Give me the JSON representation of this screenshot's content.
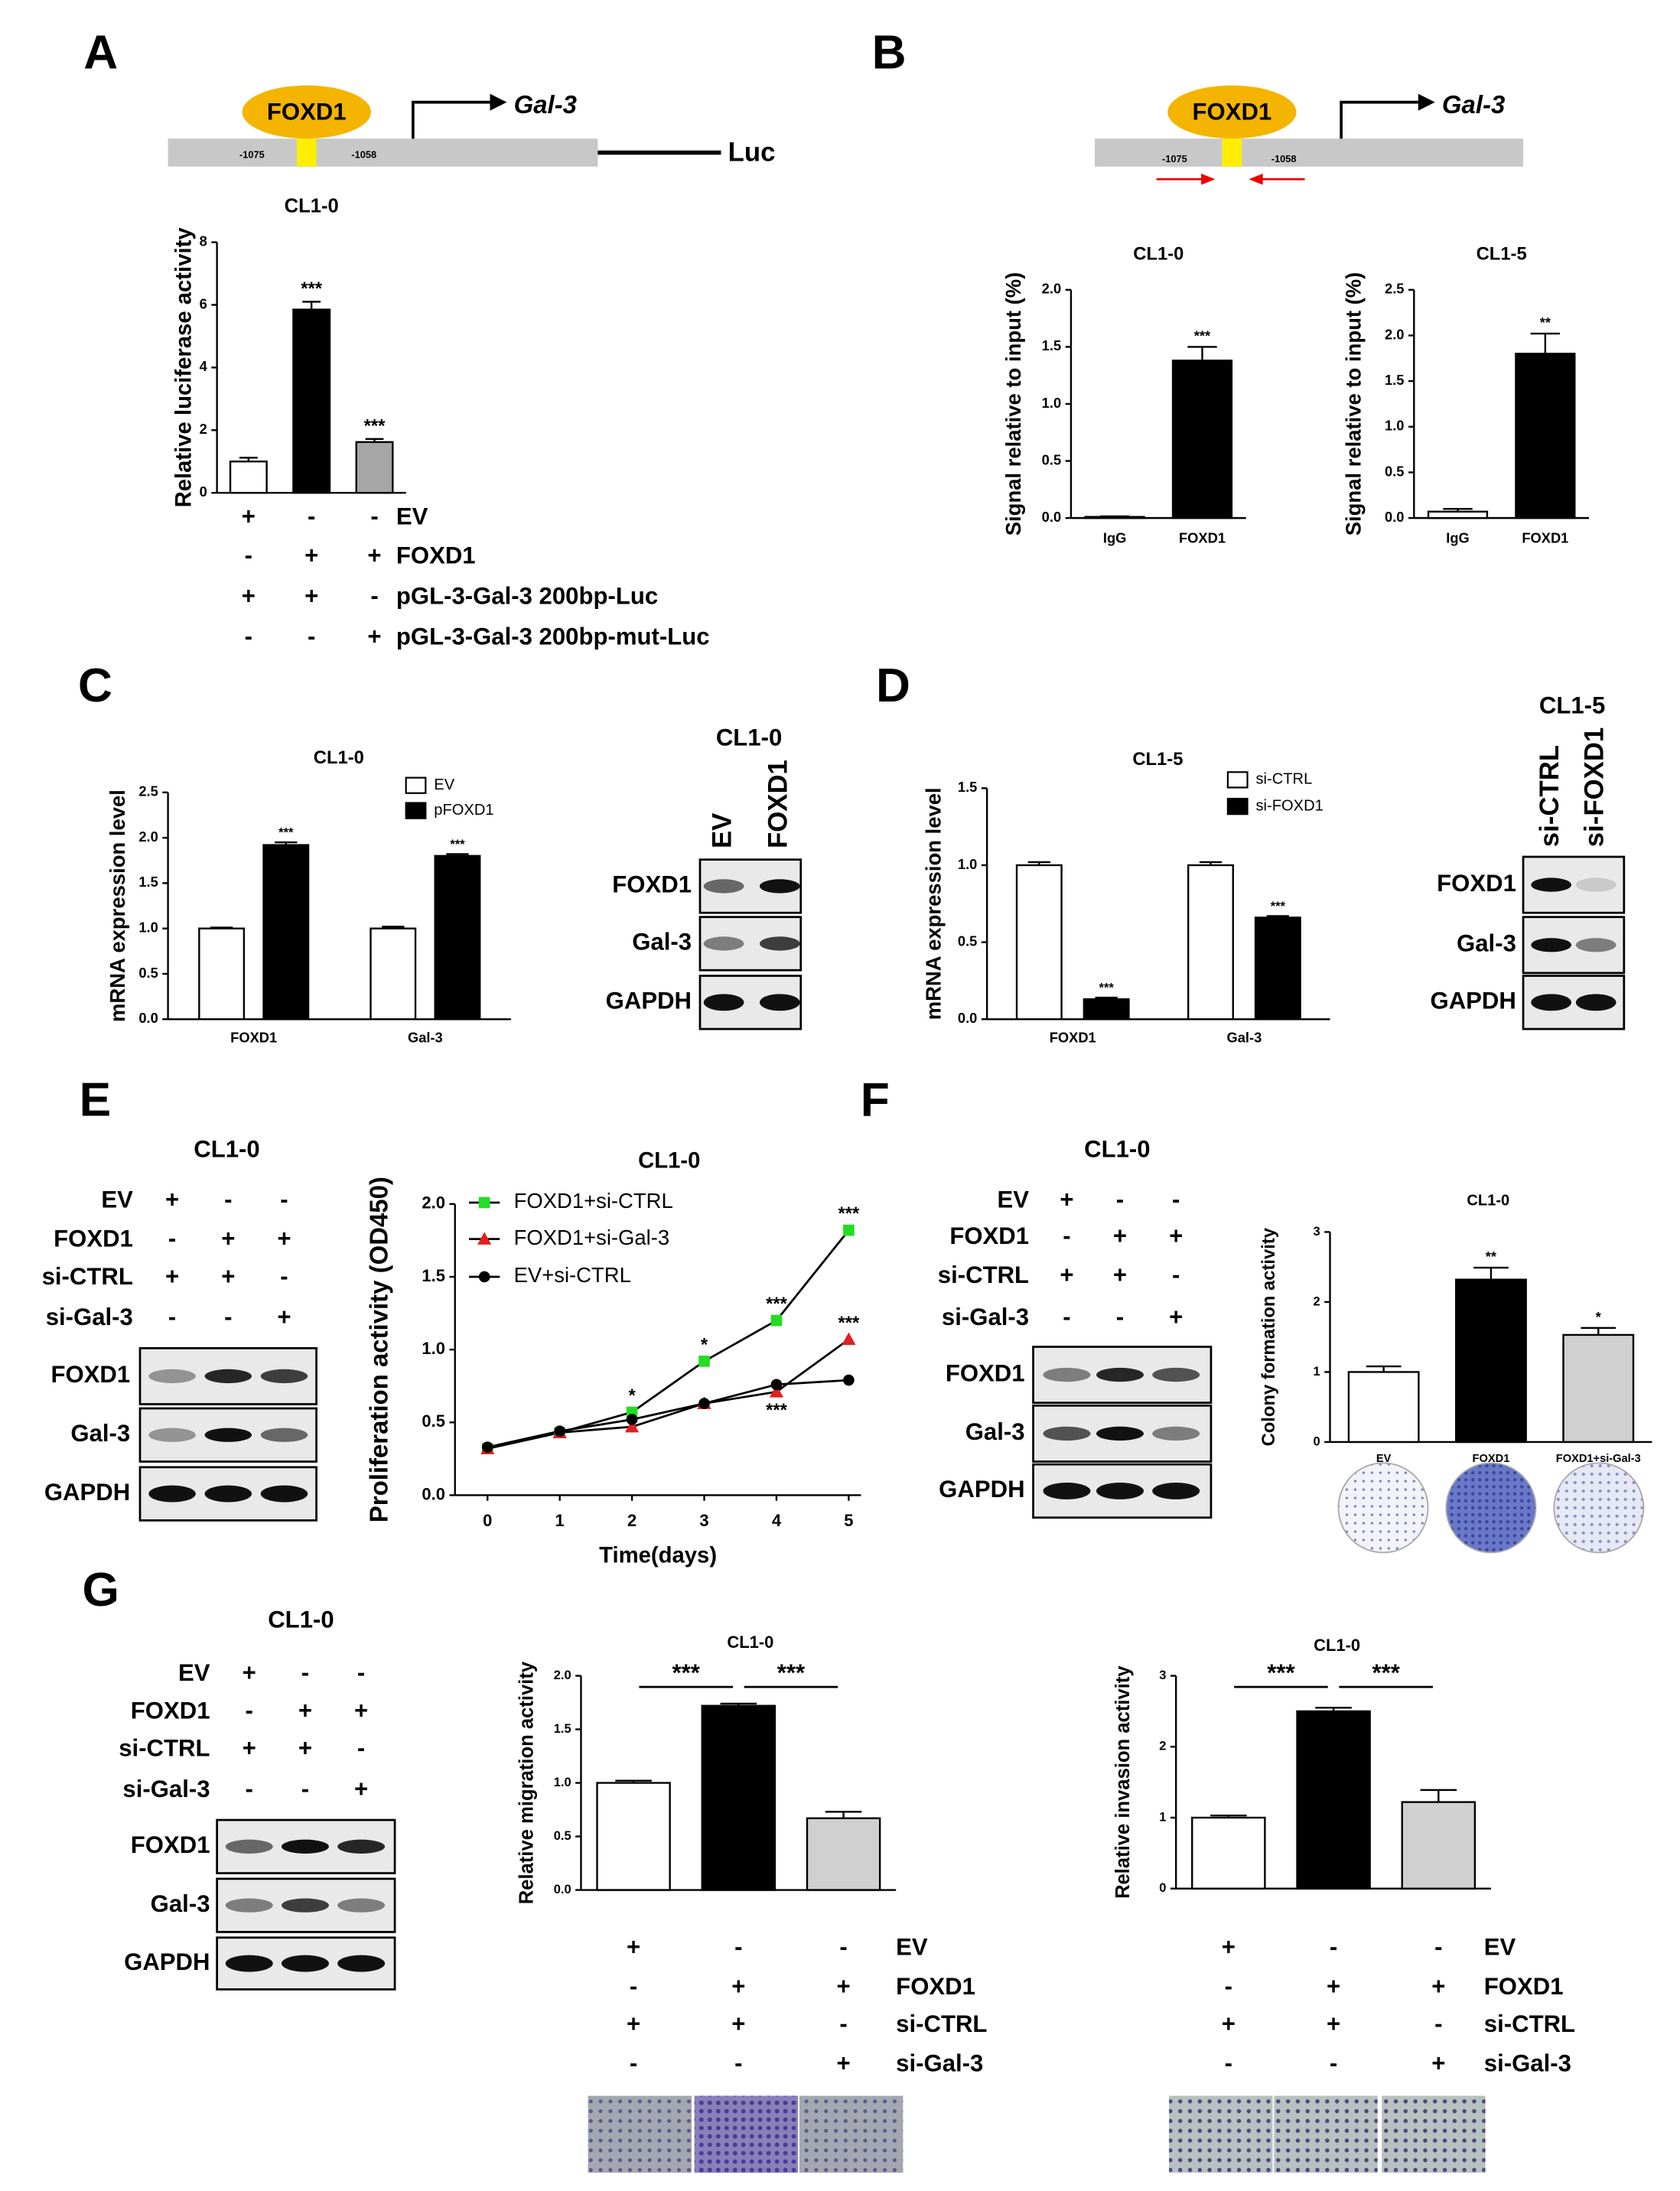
{
  "panels": [
    "A",
    "B",
    "C",
    "D",
    "E",
    "F",
    "G"
  ],
  "diagrams": [
    {
      "protein": "FOXD1",
      "gene": "Gal-3",
      "start": "-1075",
      "end": "-1058",
      "reporter": "Luc"
    },
    {
      "protein": "FOXD1",
      "gene": "Gal-3",
      "start": "-1075",
      "end": "-1058"
    }
  ],
  "blots": [
    {
      "title": "CL1-0",
      "lanes": [
        "EV",
        "FOXD1"
      ],
      "rows": [
        "FOXD1",
        "Gal-3",
        "GAPDH"
      ]
    },
    {
      "title": "CL1-5",
      "lanes": [
        "si-CTRL",
        "si-FOXD1"
      ],
      "rows": [
        "FOXD1",
        "Gal-3",
        "GAPDH"
      ]
    },
    {
      "title": "CL1-0",
      "conditions": [
        {
          "name": "EV",
          "signs": [
            "+",
            "-",
            "-"
          ]
        },
        {
          "name": "FOXD1",
          "signs": [
            "-",
            "+",
            "+"
          ]
        },
        {
          "name": "si-CTRL",
          "signs": [
            "+",
            "+",
            "-"
          ]
        },
        {
          "name": "si-Gal-3",
          "signs": [
            "-",
            "-",
            "+"
          ]
        }
      ],
      "rows": [
        "FOXD1",
        "Gal-3",
        "GAPDH"
      ]
    },
    {
      "title": "CL1-0",
      "conditions": [
        {
          "name": "EV",
          "signs": [
            "+",
            "-",
            "-"
          ]
        },
        {
          "name": "FOXD1",
          "signs": [
            "-",
            "+",
            "+"
          ]
        },
        {
          "name": "si-CTRL",
          "signs": [
            "+",
            "+",
            "-"
          ]
        },
        {
          "name": "si-Gal-3",
          "signs": [
            "-",
            "-",
            "+"
          ]
        }
      ],
      "rows": [
        "FOXD1",
        "Gal-3",
        "GAPDH"
      ]
    },
    {
      "title": "CL1-0",
      "conditions": [
        {
          "name": "EV",
          "signs": [
            "+",
            "-",
            "-"
          ]
        },
        {
          "name": "FOXD1",
          "signs": [
            "-",
            "+",
            "+"
          ]
        },
        {
          "name": "si-CTRL",
          "signs": [
            "+",
            "+",
            "-"
          ]
        },
        {
          "name": "si-Gal-3",
          "signs": [
            "-",
            "-",
            "+"
          ]
        }
      ],
      "rows": [
        "FOXD1",
        "Gal-3",
        "GAPDH"
      ]
    }
  ],
  "chart_data": [
    {
      "type": "bar",
      "title": "CL1-0",
      "ylabel": "Relative luciferase activity",
      "categories": [
        null,
        null,
        null
      ],
      "values": [
        1.0,
        5.85,
        1.62
      ],
      "errors": [
        0.12,
        0.25,
        0.1
      ],
      "colors": [
        "#ffffff",
        "#000000",
        "#a6a6a6"
      ],
      "significance": [
        null,
        "***",
        "***"
      ],
      "ylim": [
        0,
        8
      ],
      "yticks": [
        0,
        2,
        4,
        6,
        8
      ],
      "conditions": [
        {
          "name": "EV",
          "signs": [
            "+",
            "-",
            "-"
          ]
        },
        {
          "name": "FOXD1",
          "signs": [
            "-",
            "+",
            "+"
          ]
        },
        {
          "name": "pGL-3-Gal-3 200bp-Luc",
          "signs": [
            "+",
            "+",
            "-"
          ]
        },
        {
          "name": "pGL-3-Gal-3 200bp-mut-Luc",
          "signs": [
            "-",
            "-",
            "+"
          ]
        }
      ]
    },
    {
      "type": "bar",
      "title": "CL1-0",
      "ylabel": "Signal relative to input (%)",
      "categories": [
        "IgG",
        "FOXD1"
      ],
      "values": [
        0.01,
        1.38
      ],
      "errors": [
        0.005,
        0.12
      ],
      "colors": [
        "#ffffff",
        "#000000"
      ],
      "significance": [
        null,
        "***"
      ],
      "ylim": [
        0,
        2
      ],
      "yticks": [
        {
          "value": 0,
          "label": "0.0"
        },
        0.5,
        {
          "value": 1,
          "label": "1.0"
        },
        1.5,
        {
          "value": 2,
          "label": "2.0"
        }
      ]
    },
    {
      "type": "bar",
      "title": "CL1-5",
      "ylabel": "Signal relative to input (%)",
      "categories": [
        "IgG",
        "FOXD1"
      ],
      "values": [
        0.07,
        1.8
      ],
      "errors": [
        0.03,
        0.22
      ],
      "colors": [
        "#ffffff",
        "#000000"
      ],
      "significance": [
        null,
        "**"
      ],
      "ylim": [
        0,
        2.5
      ],
      "yticks": [
        {
          "value": 0,
          "label": "0.0"
        },
        0.5,
        {
          "value": 1,
          "label": "1.0"
        },
        1.5,
        {
          "value": 2,
          "label": "2.0"
        },
        2.5
      ]
    },
    {
      "type": "bar",
      "title": "CL1-0",
      "ylabel": "mRNA expression level",
      "categories": [
        "FOXD1",
        "Gal-3"
      ],
      "series": [
        {
          "name": "EV",
          "color": "#ffffff",
          "values": [
            1.0,
            1.0
          ],
          "errors": [
            0.01,
            0.02
          ]
        },
        {
          "name": "pFOXD1",
          "color": "#000000",
          "values": [
            1.92,
            1.8
          ],
          "errors": [
            0.03,
            0.02
          ],
          "significance": [
            "***",
            "***"
          ]
        }
      ],
      "ylim": [
        0,
        2.5
      ],
      "yticks": [
        {
          "value": 0,
          "label": "0.0"
        },
        0.5,
        {
          "value": 1,
          "label": "1.0"
        },
        1.5,
        {
          "value": 2,
          "label": "2.0"
        },
        2.5
      ]
    },
    {
      "type": "bar",
      "title": "CL1-5",
      "ylabel": "mRNA expression level",
      "categories": [
        "FOXD1",
        "Gal-3"
      ],
      "series": [
        {
          "name": "si-CTRL",
          "color": "#ffffff",
          "values": [
            1.0,
            1.0
          ],
          "errors": [
            0.02,
            0.02
          ]
        },
        {
          "name": "si-FOXD1",
          "color": "#000000",
          "values": [
            0.13,
            0.66
          ],
          "errors": [
            0.01,
            0.01
          ],
          "significance": [
            "***",
            "***"
          ]
        }
      ],
      "ylim": [
        0,
        1.5
      ],
      "yticks": [
        {
          "value": 0,
          "label": "0.0"
        },
        0.5,
        {
          "value": 1,
          "label": "1.0"
        },
        1.5
      ]
    },
    {
      "type": "line",
      "title": "CL1-0",
      "ylabel": "Proliferation activity (OD450)",
      "xlabel": "Time(days)",
      "x": [
        0,
        1,
        2,
        3,
        4,
        5
      ],
      "series": [
        {
          "name": "FOXD1+si-CTRL",
          "color": "#22dd22",
          "marker": "square",
          "values": [
            0.32,
            0.43,
            0.57,
            0.92,
            1.2,
            1.82
          ],
          "significance": [
            null,
            null,
            "*",
            "*",
            "***",
            "***"
          ]
        },
        {
          "name": "FOXD1+si-Gal-3",
          "color": "#e02020",
          "marker": "triangle",
          "values": [
            0.32,
            0.43,
            0.47,
            0.63,
            0.71,
            1.07
          ],
          "significance": [
            null,
            null,
            null,
            null,
            "***",
            "***"
          ]
        },
        {
          "name": "EV+si-CTRL",
          "color": "#000000",
          "marker": "circle",
          "values": [
            0.33,
            0.44,
            0.52,
            0.63,
            0.76,
            0.79
          ]
        }
      ],
      "xlim": [
        -0.45,
        5.17
      ],
      "xticks": [
        0,
        1,
        2,
        3,
        4,
        5
      ],
      "ylim": [
        0,
        2
      ],
      "yticks": [
        {
          "value": 0,
          "label": "0.0"
        },
        0.5,
        {
          "value": 1,
          "label": "1.0"
        },
        1.5,
        {
          "value": 2,
          "label": "2.0"
        }
      ],
      "legend": "upper left"
    },
    {
      "type": "bar",
      "title": "CL1-0",
      "ylabel": "Colony formation activity",
      "categories": [
        "EV",
        "FOXD1",
        "FOXD1+si-Gal-3"
      ],
      "values": [
        1.0,
        2.32,
        1.53
      ],
      "errors": [
        0.08,
        0.17,
        0.1
      ],
      "colors": [
        "#ffffff",
        "#000000",
        "#d0d0d0"
      ],
      "significance": [
        null,
        "**",
        "*"
      ],
      "ylim": [
        0,
        3
      ],
      "yticks": [
        0,
        1,
        2,
        3
      ]
    },
    {
      "type": "bar",
      "title": "CL1-0",
      "ylabel": "Relative migration activity",
      "categories": [
        null,
        null,
        null
      ],
      "values": [
        1.0,
        1.72,
        0.67
      ],
      "errors": [
        0.02,
        0.02,
        0.06
      ],
      "colors": [
        "#ffffff",
        "#000000",
        "#d0d0d0"
      ],
      "brackets": [
        "***",
        "***"
      ],
      "ylim": [
        0,
        2
      ],
      "yticks": [
        {
          "value": 0,
          "label": "0.0"
        },
        0.5,
        {
          "value": 1,
          "label": "1.0"
        },
        1.5,
        {
          "value": 2,
          "label": "2.0"
        }
      ],
      "conditions": [
        {
          "name": "EV",
          "signs": [
            "+",
            "-",
            "-"
          ]
        },
        {
          "name": "FOXD1",
          "signs": [
            "-",
            "+",
            "+"
          ]
        },
        {
          "name": "si-CTRL",
          "signs": [
            "+",
            "+",
            "-"
          ]
        },
        {
          "name": "si-Gal-3",
          "signs": [
            "-",
            "-",
            "+"
          ]
        }
      ]
    },
    {
      "type": "bar",
      "title": "CL1-0",
      "ylabel": "Relative invasion activity",
      "categories": [
        null,
        null,
        null
      ],
      "values": [
        1.0,
        2.5,
        1.22
      ],
      "errors": [
        0.03,
        0.05,
        0.17
      ],
      "colors": [
        "#ffffff",
        "#000000",
        "#d0d0d0"
      ],
      "brackets": [
        "***",
        "***"
      ],
      "ylim": [
        0,
        3
      ],
      "yticks": [
        0,
        1,
        2,
        3
      ],
      "conditions": [
        {
          "name": "EV",
          "signs": [
            "+",
            "-",
            "-"
          ]
        },
        {
          "name": "FOXD1",
          "signs": [
            "-",
            "+",
            "+"
          ]
        },
        {
          "name": "si-CTRL",
          "signs": [
            "+",
            "+",
            "-"
          ]
        },
        {
          "name": "si-Gal-3",
          "signs": [
            "-",
            "-",
            "+"
          ]
        }
      ]
    }
  ]
}
